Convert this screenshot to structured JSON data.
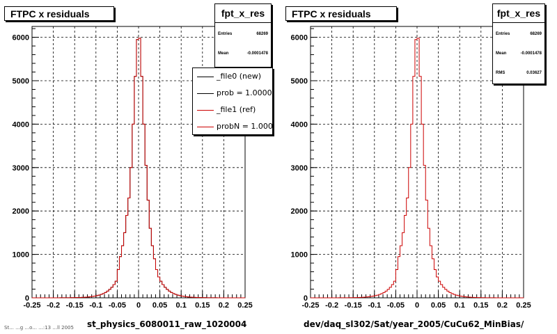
{
  "chart_data": [
    {
      "type": "histogram",
      "title": "FTPC x residuals",
      "xlabel": "st_physics_6080011_raw_1020004",
      "xlim": [
        -0.25,
        0.25
      ],
      "ylim": [
        0,
        6250
      ],
      "x_ticks": [
        "-0.25",
        "-0.2",
        "-0.15",
        "-0.1",
        "-0.05",
        "0",
        "0.05",
        "0.1",
        "0.15",
        "0.2",
        "0.25"
      ],
      "y_ticks": [
        "0",
        "1000",
        "2000",
        "3000",
        "4000",
        "5000",
        "6000"
      ],
      "grid": true,
      "bin_width": 0.005,
      "bin_centers": [
        -0.0475,
        -0.0425,
        -0.0375,
        -0.0325,
        -0.0275,
        -0.0225,
        -0.0175,
        -0.0125,
        -0.0075,
        -0.0025,
        0.0025,
        0.0075,
        0.0125,
        0.0175,
        0.0225,
        0.0275,
        0.0325,
        0.0375,
        0.0425,
        0.0475
      ],
      "series": [
        {
          "name": "_file0 (new)",
          "color": "#000000",
          "values": [
            650,
            950,
            1200,
            1500,
            1900,
            2300,
            3000,
            4000,
            5100,
            5950,
            5980,
            5100,
            4000,
            3050,
            2250,
            1600,
            1200,
            900,
            650,
            480
          ]
        },
        {
          "name": "_file1 (ref)",
          "color": "#cc0000",
          "values": [
            650,
            950,
            1200,
            1500,
            1900,
            2300,
            3000,
            4000,
            5100,
            5950,
            5980,
            5100,
            4000,
            3050,
            2250,
            1600,
            1200,
            900,
            650,
            480
          ]
        }
      ],
      "stats": {
        "name": "fpt_x_res",
        "entries": "68269",
        "mean": "-0.0001478"
      },
      "legend": [
        "_file0 (new)",
        "prob = 1.000000",
        "_file1 (ref)",
        "probN = 1.000000"
      ]
    },
    {
      "type": "histogram",
      "title": "FTPC x residuals",
      "xlabel": "dev/daq_sl302/Sat/year_2005/CuCu62_MinBias/",
      "xlim": [
        -0.25,
        0.25
      ],
      "ylim": [
        0,
        6250
      ],
      "x_ticks": [
        "-0.25",
        "-0.2",
        "-0.15",
        "-0.1",
        "-0.05",
        "0",
        "0.05",
        "0.1",
        "0.15",
        "0.2",
        "0.25"
      ],
      "y_ticks": [
        "0",
        "1000",
        "2000",
        "3000",
        "4000",
        "5000",
        "6000"
      ],
      "grid": true,
      "bin_width": 0.005,
      "bin_centers": [
        -0.0475,
        -0.0425,
        -0.0375,
        -0.0325,
        -0.0275,
        -0.0225,
        -0.0175,
        -0.0125,
        -0.0075,
        -0.0025,
        0.0025,
        0.0075,
        0.0125,
        0.0175,
        0.0225,
        0.0275,
        0.0325,
        0.0375,
        0.0425,
        0.0475
      ],
      "series": [
        {
          "name": "_file1 (ref)",
          "color": "#cc0000",
          "values": [
            650,
            950,
            1200,
            1500,
            1900,
            2300,
            3000,
            4000,
            5100,
            5950,
            5980,
            5100,
            4000,
            3050,
            2250,
            1600,
            1200,
            900,
            650,
            480
          ]
        }
      ],
      "stats": {
        "name": "fpt_x_res",
        "entries": "68269",
        "mean": "-0.0001478",
        "rms": "0.03627"
      }
    }
  ],
  "labels": {
    "entries": "Entries",
    "mean": "Mean",
    "rms": "RMS"
  },
  "footer": "St... ...g ...o... ...:13 ...ll 2005"
}
